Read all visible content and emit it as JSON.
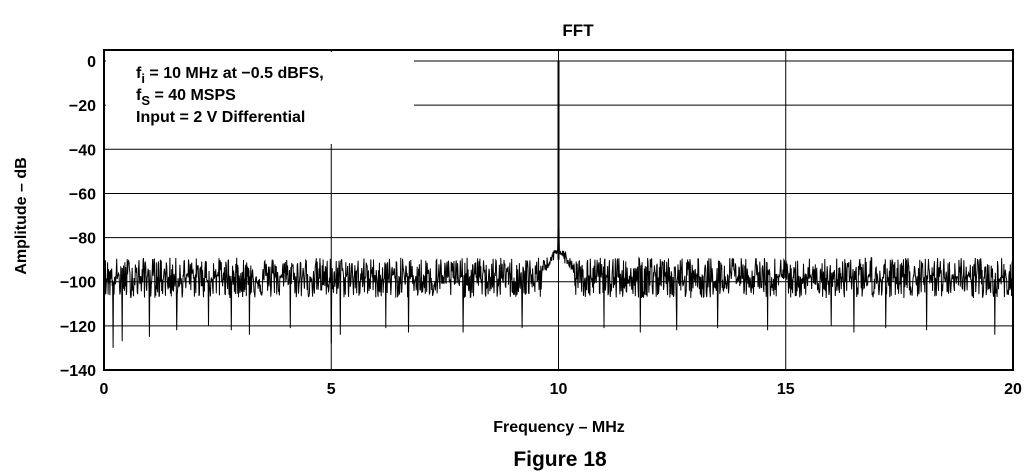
{
  "chart_data": {
    "type": "line",
    "title": "FFT",
    "xlabel": "Frequency – MHz",
    "ylabel": "Amplitude – dB",
    "xlim": [
      0,
      20
    ],
    "ylim": [
      -140,
      5
    ],
    "xticks": [
      0,
      5,
      10,
      15,
      20
    ],
    "xtick_labels": [
      "0",
      "5",
      "10",
      "15",
      "20"
    ],
    "yticks": [
      0,
      -20,
      -40,
      -60,
      -80,
      -100,
      -120,
      -140
    ],
    "ytick_labels": [
      "0",
      "−20",
      "−40",
      "−60",
      "−80",
      "−100",
      "−120",
      "−140"
    ],
    "grid": true,
    "series": [
      {
        "points": [
          [
            0,
            -96
          ],
          [
            0.25,
            -98
          ],
          [
            0.5,
            -95
          ],
          [
            0.75,
            -99
          ],
          [
            1,
            -97
          ],
          [
            1.5,
            -98
          ],
          [
            2,
            -96
          ],
          [
            2.5,
            -99
          ],
          [
            3,
            -97
          ],
          [
            3.5,
            -98
          ],
          [
            4,
            -96
          ],
          [
            4.5,
            -99
          ],
          [
            5,
            -97
          ],
          [
            5.5,
            -98
          ],
          [
            6,
            -96
          ],
          [
            6.5,
            -99
          ],
          [
            7,
            -97
          ],
          [
            7.5,
            -98
          ],
          [
            8,
            -96
          ],
          [
            8.5,
            -99
          ],
          [
            9,
            -97
          ],
          [
            9.5,
            -95
          ],
          [
            9.8,
            -90
          ],
          [
            9.9,
            -82
          ],
          [
            9.95,
            -70
          ],
          [
            10,
            0
          ],
          [
            10.05,
            -70
          ],
          [
            10.1,
            -82
          ],
          [
            10.2,
            -90
          ],
          [
            10.5,
            -95
          ],
          [
            11,
            -97
          ],
          [
            11.5,
            -98
          ],
          [
            12,
            -96
          ],
          [
            12.5,
            -99
          ],
          [
            13,
            -97
          ],
          [
            13.5,
            -98
          ],
          [
            14,
            -96
          ],
          [
            14.5,
            -99
          ],
          [
            15,
            -97
          ],
          [
            15.5,
            -98
          ],
          [
            16,
            -96
          ],
          [
            16.5,
            -99
          ],
          [
            17,
            -97
          ],
          [
            17.5,
            -98
          ],
          [
            18,
            -96
          ],
          [
            18.5,
            -99
          ],
          [
            19,
            -97
          ],
          [
            19.5,
            -98
          ],
          [
            20,
            -96
          ]
        ],
        "noise_floor_db": -97,
        "noise_band_db": [
          -105,
          -88
        ],
        "noise_spikes_db": [
          [
            0.2,
            -130
          ],
          [
            0.4,
            -127
          ],
          [
            1.0,
            -125
          ],
          [
            1.6,
            -122
          ],
          [
            2.3,
            -120
          ],
          [
            2.8,
            -122
          ],
          [
            3.2,
            -124
          ],
          [
            4.1,
            -121
          ],
          [
            5.0,
            -128
          ],
          [
            5.2,
            -124
          ],
          [
            6.2,
            -121
          ],
          [
            6.7,
            -123
          ],
          [
            7.9,
            -123
          ],
          [
            9.2,
            -121
          ],
          [
            11.0,
            -121
          ],
          [
            11.8,
            -123
          ],
          [
            12.6,
            -122
          ],
          [
            13.5,
            -121
          ],
          [
            14.6,
            -122
          ],
          [
            16.0,
            -120
          ],
          [
            16.5,
            -123
          ],
          [
            17.2,
            -121
          ],
          [
            18.1,
            -122
          ],
          [
            19.6,
            -124
          ]
        ],
        "fundamental": {
          "x": 10,
          "y": 0
        },
        "color": "#000000"
      }
    ],
    "annotations": [
      {
        "main": "f",
        "sub": "i",
        "rest": " = 10 MHz at −0.5 dBFS,"
      },
      {
        "main": "f",
        "sub": "S",
        "rest": " = 40 MSPS"
      },
      {
        "main": "Input = 2 V Differential",
        "sub": "",
        "rest": ""
      }
    ],
    "caption": "Figure 18"
  }
}
